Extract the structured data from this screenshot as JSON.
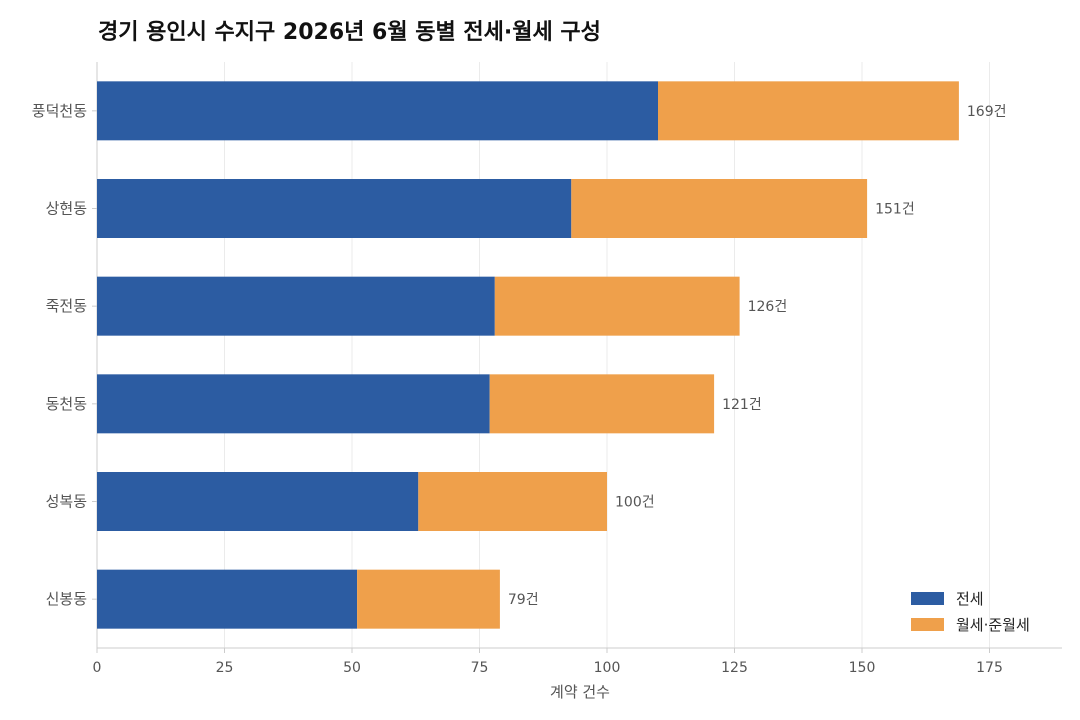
{
  "chart_data": {
    "type": "bar",
    "orientation": "horizontal",
    "stacked": true,
    "title": "경기 용인시 수지구 2026년 6월 동별 전세·월세 구성",
    "xlabel": "계약 건수",
    "ylabel": "",
    "xlim": [
      0,
      190
    ],
    "x_ticks": [
      0,
      25,
      50,
      75,
      100,
      125,
      150,
      175
    ],
    "grid": "vertical",
    "categories": [
      "풍덕천동",
      "상현동",
      "죽전동",
      "동천동",
      "성복동",
      "신봉동"
    ],
    "series": [
      {
        "name": "전세",
        "color": "#2c5ca2",
        "values": [
          110,
          93,
          78,
          77,
          63,
          51
        ]
      },
      {
        "name": "월세·준월세",
        "color": "#efa04b",
        "values": [
          59,
          58,
          48,
          44,
          37,
          28
        ]
      }
    ],
    "totals": [
      169,
      151,
      126,
      121,
      100,
      79
    ],
    "total_labels": [
      "169건",
      "151건",
      "126건",
      "121건",
      "100건",
      "79건"
    ],
    "legend_position": "bottom-right"
  }
}
